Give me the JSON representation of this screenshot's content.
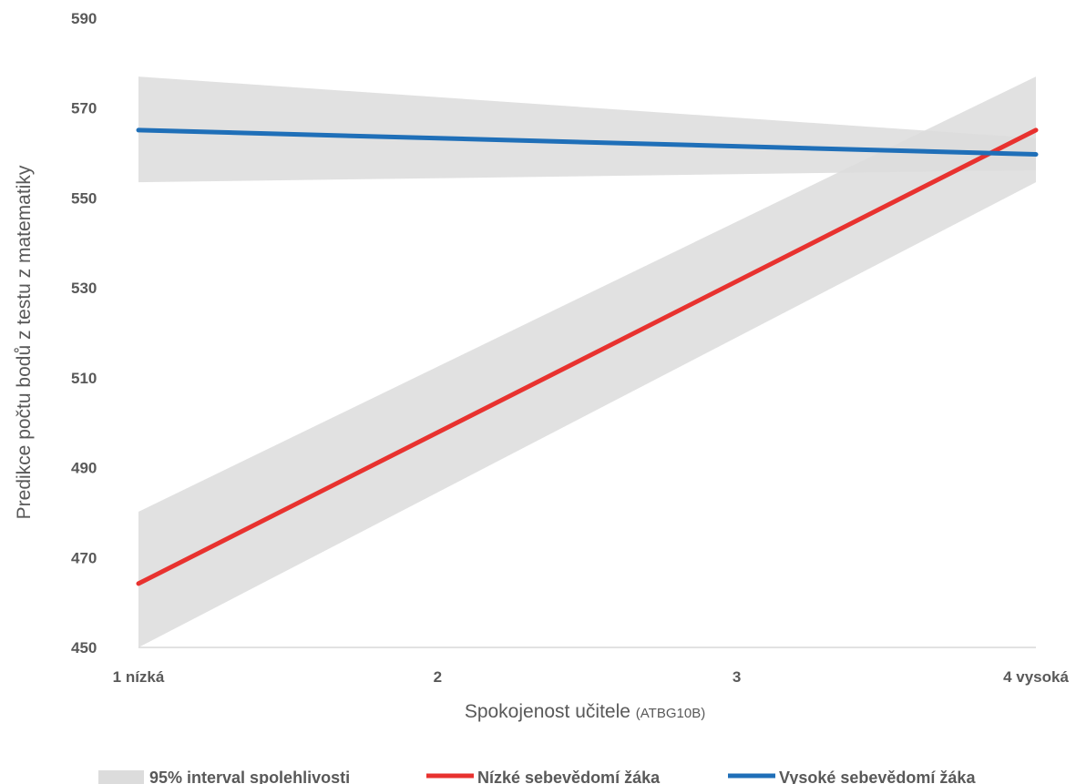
{
  "chart_data": {
    "type": "line",
    "x_categories": [
      "1 nízká",
      "2",
      "3",
      "4 vysoká"
    ],
    "x_numeric": [
      1,
      4
    ],
    "xlabel": "Spokojenost učitele",
    "xlabel_suffix": "(ATBG10B)",
    "ylabel": "Predikce počtu bodů z testu z matematiky",
    "ylim": [
      450,
      590
    ],
    "yticks": [
      450,
      470,
      490,
      510,
      530,
      550,
      570,
      590
    ],
    "grid": false,
    "legend_position": "bottom",
    "series": [
      {
        "name": "Nízké sebevědomí žáka",
        "color": "#E8322F",
        "x": [
          1,
          4
        ],
        "y": [
          464.2,
          565.1
        ],
        "ci_lower": [
          448.0,
          553.5
        ],
        "ci_upper": [
          480.2,
          577.0
        ]
      },
      {
        "name": "Vysoké sebevědomí žáka",
        "color": "#1F6FB8",
        "x": [
          1,
          4
        ],
        "y": [
          565.1,
          559.7
        ],
        "ci_lower": [
          553.5,
          556.2
        ],
        "ci_upper": [
          577.0,
          563.3
        ]
      }
    ],
    "ci_label": "95% interval spolehlivosti",
    "ci_color": "#DCDCDC"
  }
}
